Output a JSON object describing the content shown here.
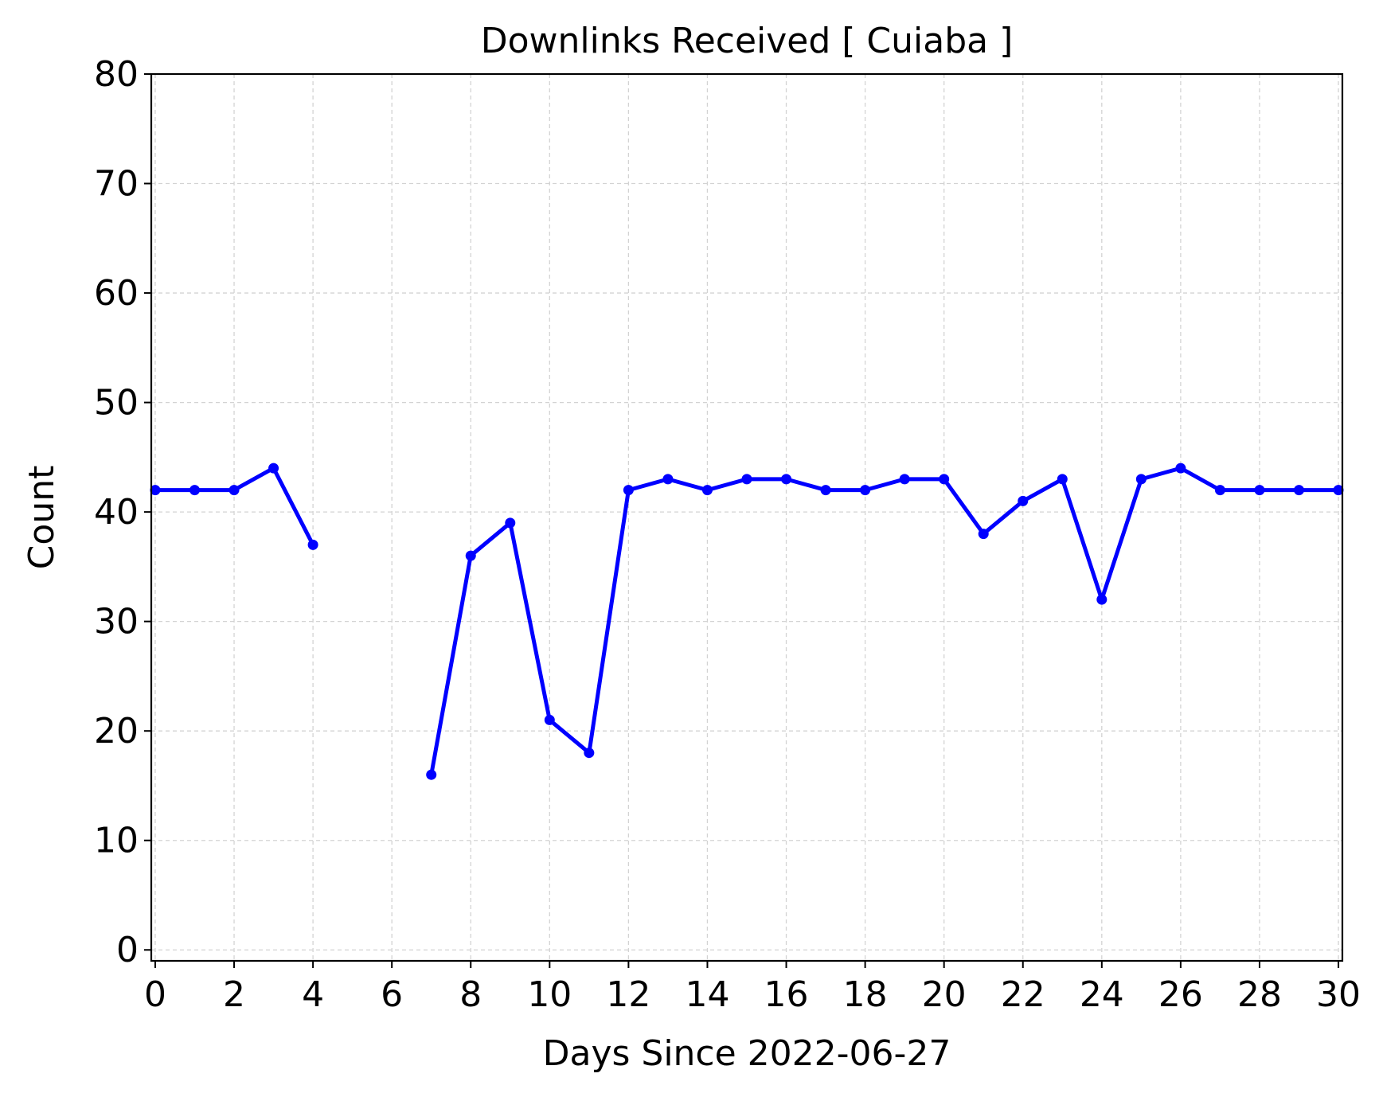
{
  "chart_data": {
    "type": "line",
    "title": "Downlinks Received [ Cuiaba ]",
    "xlabel": "Days Since 2022-06-27",
    "ylabel": "Count",
    "xlim": [
      -0.1,
      30.1
    ],
    "ylim": [
      -1,
      80
    ],
    "x_ticks": [
      "0",
      "2",
      "4",
      "6",
      "8",
      "10",
      "12",
      "14",
      "16",
      "18",
      "20",
      "22",
      "24",
      "26",
      "28",
      "30"
    ],
    "y_ticks": [
      "0",
      "10",
      "20",
      "30",
      "40",
      "50",
      "60",
      "70",
      "80"
    ],
    "grid": true,
    "series": [
      {
        "color": "#0000ff",
        "marker": "circle",
        "x": [
          0,
          1,
          2,
          3,
          4,
          5,
          6,
          7,
          8,
          9,
          10,
          11,
          12,
          13,
          14,
          15,
          16,
          17,
          18,
          19,
          20,
          21,
          22,
          23,
          24,
          25,
          26,
          27,
          28,
          29,
          30
        ],
        "y": [
          42,
          42,
          42,
          44,
          37,
          null,
          null,
          16,
          36,
          39,
          21,
          18,
          42,
          43,
          42,
          43,
          43,
          42,
          42,
          43,
          43,
          38,
          41,
          43,
          32,
          43,
          44,
          42,
          42,
          42,
          42
        ]
      }
    ]
  }
}
